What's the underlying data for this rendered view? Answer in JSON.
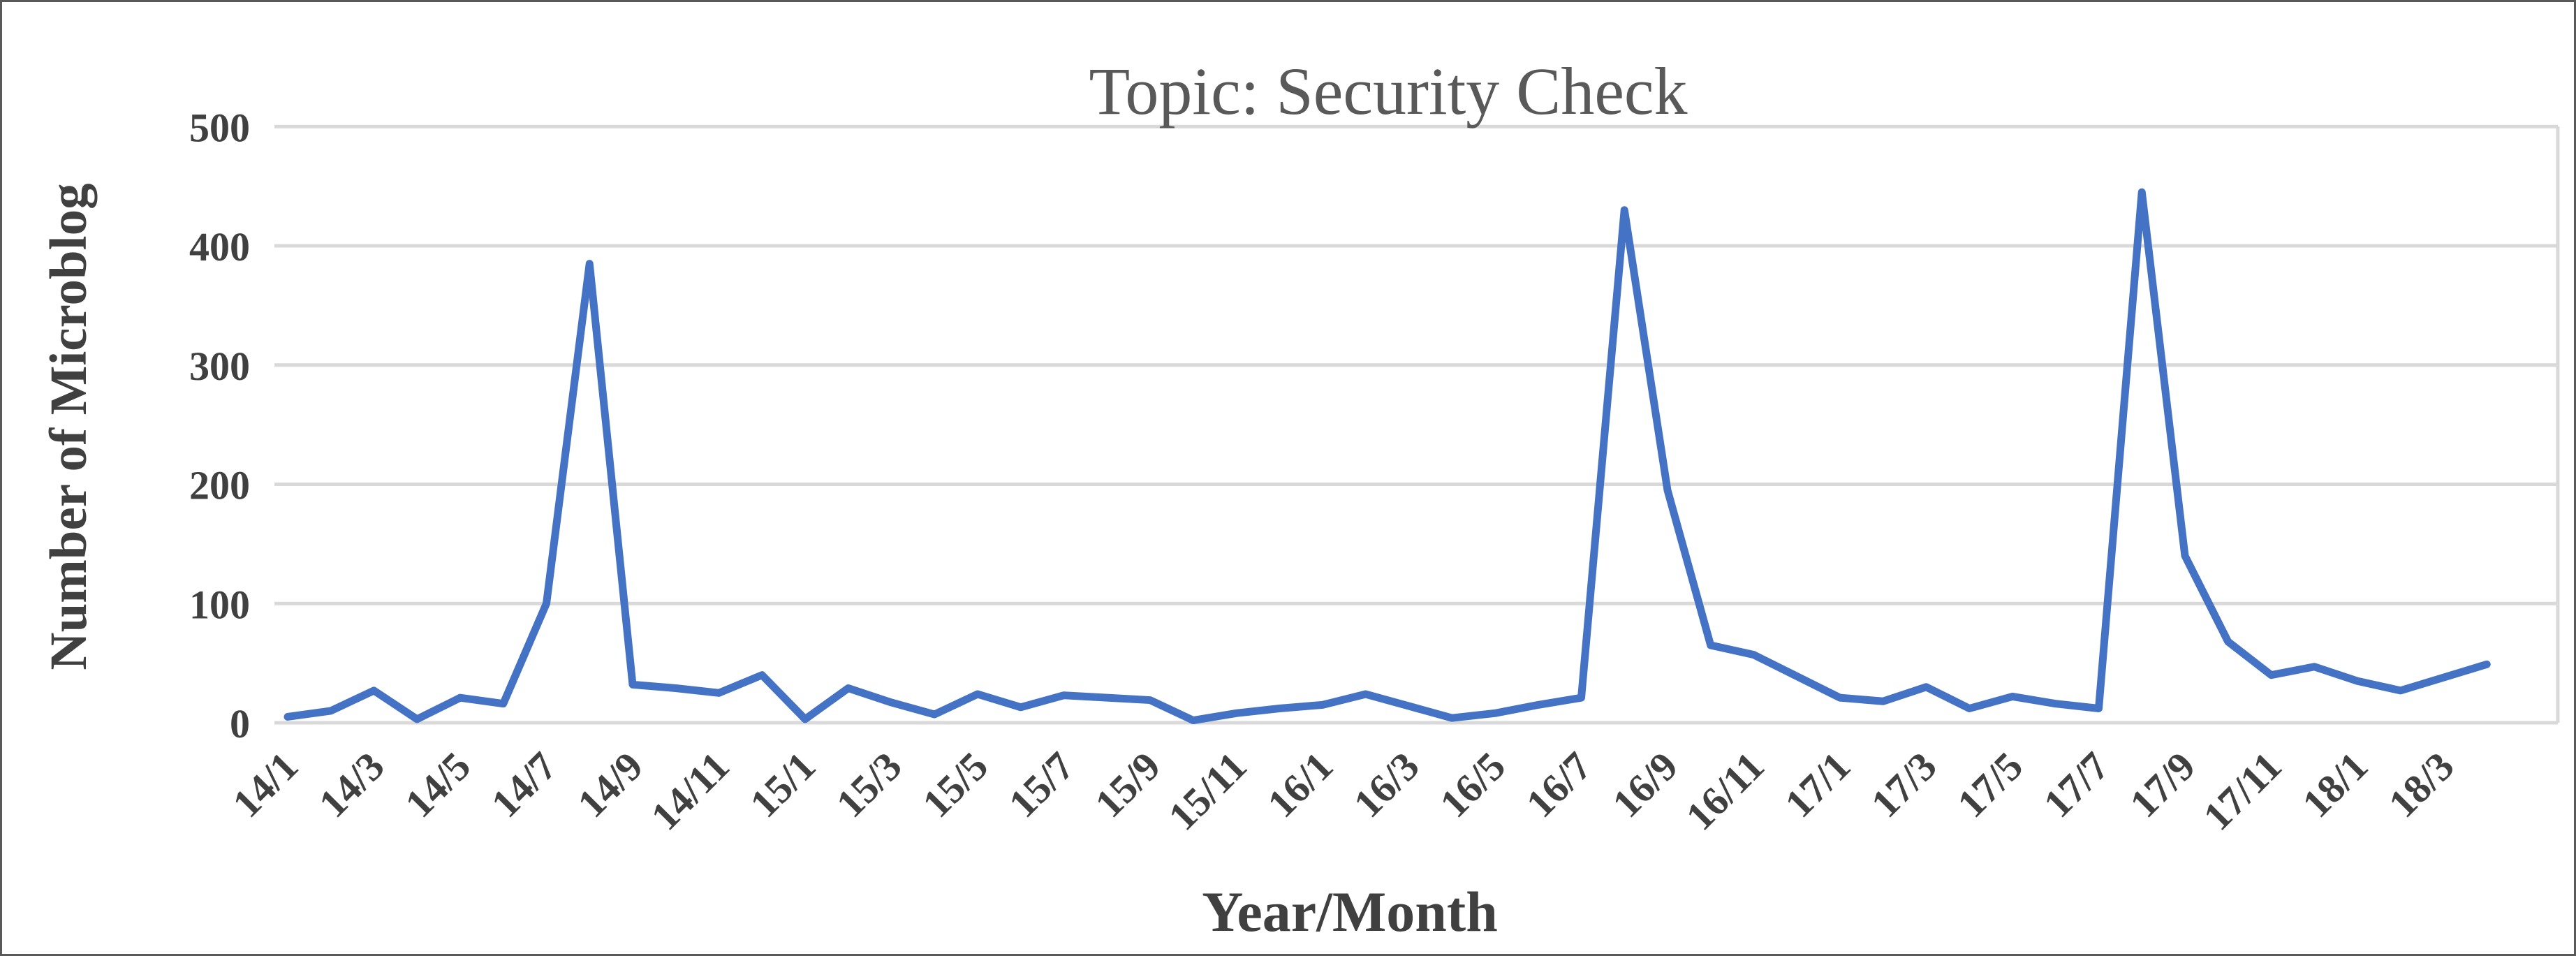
{
  "window": {
    "background_color": "#FFFFFF",
    "border_color": "#595959"
  },
  "chart_data": {
    "type": "line",
    "title": "Topic: Security Check",
    "xlabel": "Year/Month",
    "ylabel": "Number of Microblog",
    "ylim": [
      0,
      500
    ],
    "yticks": [
      0,
      100,
      200,
      300,
      400,
      500
    ],
    "grid": true,
    "legend_position": "none",
    "line_color": "#4472C4",
    "gridline_color": "#D9D9D9",
    "title_color": "#595959",
    "tick_label_color": "#404040",
    "x_tick_labels": [
      "14/1",
      "14/3",
      "14/5",
      "14/7",
      "14/9",
      "14/11",
      "15/1",
      "15/3",
      "15/5",
      "15/7",
      "15/9",
      "15/11",
      "16/1",
      "16/3",
      "16/5",
      "16/7",
      "16/9",
      "16/11",
      "17/1",
      "17/3",
      "17/5",
      "17/7",
      "17/9",
      "17/11",
      "18/1",
      "18/3"
    ],
    "categories": [
      "14/1",
      "14/2",
      "14/3",
      "14/4",
      "14/5",
      "14/6",
      "14/7",
      "14/8",
      "14/9",
      "14/10",
      "14/11",
      "14/12",
      "15/1",
      "15/2",
      "15/3",
      "15/4",
      "15/5",
      "15/6",
      "15/7",
      "15/8",
      "15/9",
      "15/10",
      "15/11",
      "15/12",
      "16/1",
      "16/2",
      "16/3",
      "16/4",
      "16/5",
      "16/6",
      "16/7",
      "16/8",
      "16/9",
      "16/10",
      "16/11",
      "16/12",
      "17/1",
      "17/2",
      "17/3",
      "17/4",
      "17/5",
      "17/6",
      "17/7",
      "17/8",
      "17/9",
      "17/10",
      "17/11",
      "17/12",
      "18/1",
      "18/2",
      "18/3",
      "18/4"
    ],
    "values": [
      5,
      10,
      27,
      3,
      21,
      16,
      100,
      385,
      32,
      29,
      25,
      40,
      3,
      29,
      17,
      7,
      24,
      13,
      23,
      21,
      19,
      2,
      8,
      12,
      15,
      24,
      14,
      4,
      8,
      15,
      21,
      430,
      195,
      65,
      57,
      39,
      21,
      18,
      30,
      12,
      22,
      16,
      12,
      445,
      140,
      68,
      40,
      47,
      35,
      27,
      38,
      49
    ]
  }
}
